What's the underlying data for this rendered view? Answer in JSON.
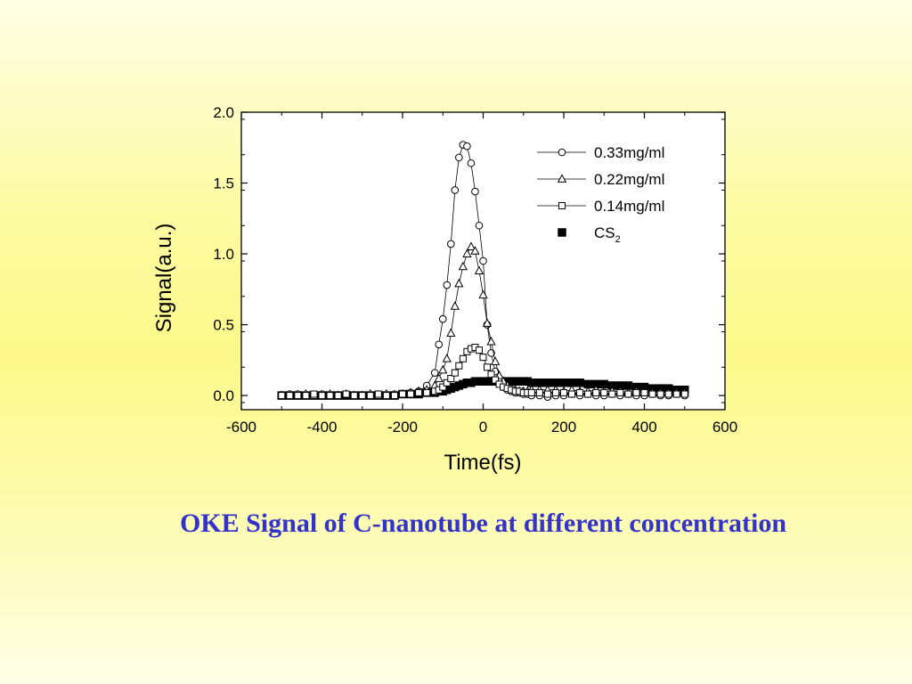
{
  "caption": "OKE Signal of C-nanotube at different concentration",
  "colors": {
    "caption": "#3333cc",
    "background": "#fcf98a",
    "plot": "#ffffff",
    "ink": "#000000"
  },
  "chart_data": {
    "type": "scatter",
    "xlabel": "Time(fs)",
    "ylabel": "Signal(a.u.)",
    "xlim": [
      -600,
      600
    ],
    "ylim": [
      -0.1,
      2.0
    ],
    "xticks": [
      "-600",
      "-400",
      "-200",
      "0",
      "200",
      "400",
      "600"
    ],
    "yticks": [
      "0.0",
      "0.5",
      "1.0",
      "1.5",
      "2.0"
    ],
    "legend_position": "top-right",
    "grid": false,
    "x": [
      -500,
      -480,
      -460,
      -440,
      -420,
      -400,
      -380,
      -360,
      -340,
      -320,
      -300,
      -280,
      -260,
      -240,
      -220,
      -200,
      -180,
      -160,
      -140,
      -120,
      -110,
      -100,
      -90,
      -80,
      -70,
      -60,
      -50,
      -40,
      -30,
      -20,
      -10,
      0,
      10,
      20,
      30,
      40,
      50,
      60,
      70,
      80,
      90,
      100,
      110,
      120,
      140,
      160,
      180,
      200,
      220,
      240,
      260,
      280,
      300,
      320,
      340,
      360,
      380,
      400,
      420,
      440,
      460,
      480,
      500
    ],
    "series": [
      {
        "name": "0.33mg/ml",
        "marker": "circle",
        "line": true,
        "values": [
          0.0,
          0.01,
          0.01,
          0.0,
          0.0,
          0.01,
          0.0,
          0.0,
          0.01,
          0.0,
          0.0,
          0.0,
          0.01,
          0.0,
          0.01,
          0.01,
          0.02,
          0.03,
          0.07,
          0.16,
          0.36,
          0.54,
          0.78,
          1.07,
          1.45,
          1.68,
          1.77,
          1.76,
          1.64,
          1.44,
          1.2,
          0.95,
          0.5,
          0.3,
          0.17,
          0.1,
          0.06,
          0.04,
          0.03,
          0.02,
          0.02,
          0.01,
          0.01,
          0.0,
          0.0,
          -0.01,
          0.0,
          0.0,
          0.01,
          0.0,
          0.01,
          0.0,
          0.0,
          0.01,
          0.0,
          0.01,
          0.0,
          0.0,
          0.01,
          0.0,
          0.0,
          0.01,
          0.0
        ]
      },
      {
        "name": "0.22mg/ml",
        "marker": "triangle",
        "line": true,
        "values": [
          0.0,
          0.0,
          0.0,
          0.01,
          0.0,
          0.0,
          0.01,
          0.0,
          0.01,
          0.0,
          0.0,
          0.01,
          0.0,
          0.01,
          0.0,
          0.01,
          0.02,
          0.03,
          0.04,
          0.07,
          0.12,
          0.18,
          0.26,
          0.44,
          0.63,
          0.79,
          0.91,
          1.0,
          1.05,
          1.02,
          0.88,
          0.71,
          0.51,
          0.38,
          0.24,
          0.14,
          0.1,
          0.07,
          0.05,
          0.04,
          0.03,
          0.03,
          0.03,
          0.04,
          0.04,
          0.04,
          0.04,
          0.03,
          0.04,
          0.03,
          0.03,
          0.04,
          0.03,
          0.03,
          0.03,
          0.02,
          0.03,
          0.02,
          0.02,
          0.02,
          0.02,
          0.02,
          0.02
        ]
      },
      {
        "name": "0.14mg/ml",
        "marker": "square",
        "line": true,
        "values": [
          0.0,
          0.0,
          0.0,
          0.0,
          0.01,
          0.0,
          0.0,
          0.0,
          0.01,
          0.0,
          0.0,
          0.0,
          0.01,
          0.0,
          0.0,
          0.01,
          0.01,
          0.02,
          0.02,
          0.03,
          0.04,
          0.06,
          0.09,
          0.12,
          0.16,
          0.21,
          0.26,
          0.31,
          0.33,
          0.34,
          0.32,
          0.27,
          0.2,
          0.15,
          0.11,
          0.08,
          0.06,
          0.05,
          0.04,
          0.03,
          0.03,
          0.02,
          0.02,
          0.02,
          0.02,
          0.01,
          0.02,
          0.02,
          0.01,
          0.02,
          0.01,
          0.02,
          0.02,
          0.01,
          0.02,
          0.01,
          0.02,
          0.02,
          0.01,
          0.01,
          0.01,
          0.01,
          0.01
        ]
      },
      {
        "name": "CS",
        "name_subscript": "2",
        "marker": "filled-square",
        "line": false,
        "values": [
          0.0,
          0.0,
          0.0,
          0.0,
          0.0,
          0.0,
          0.0,
          0.0,
          0.0,
          0.0,
          0.0,
          0.0,
          0.0,
          0.0,
          0.0,
          0.01,
          0.01,
          0.01,
          0.02,
          0.02,
          0.03,
          0.03,
          0.04,
          0.05,
          0.06,
          0.07,
          0.08,
          0.09,
          0.09,
          0.1,
          0.1,
          0.1,
          0.1,
          0.1,
          0.1,
          0.1,
          0.1,
          0.1,
          0.1,
          0.1,
          0.1,
          0.1,
          0.1,
          0.09,
          0.09,
          0.09,
          0.09,
          0.09,
          0.09,
          0.09,
          0.08,
          0.08,
          0.08,
          0.07,
          0.07,
          0.07,
          0.06,
          0.06,
          0.05,
          0.05,
          0.05,
          0.04,
          0.04
        ]
      }
    ]
  }
}
